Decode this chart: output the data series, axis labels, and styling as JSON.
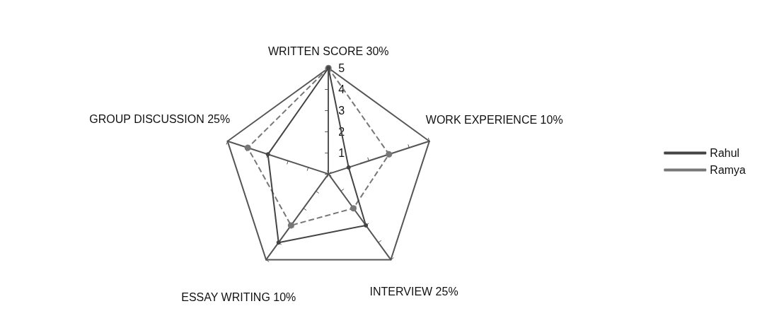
{
  "chart_data": {
    "type": "radar",
    "categories": [
      "WRITTEN SCORE 30%",
      "WORK EXPERIENCE 10%",
      "INTERVIEW 25%",
      "ESSAY WRITING 10%",
      "GROUP DISCUSSION 25%"
    ],
    "series": [
      {
        "name": "Rahul",
        "color": "#444444",
        "values": [
          5,
          1,
          3,
          4,
          3
        ],
        "line_style": "solid"
      },
      {
        "name": "Ramya",
        "color": "#777777",
        "values": [
          5,
          3,
          2,
          3,
          4
        ],
        "line_style": "dashed"
      }
    ],
    "ylim": [
      0,
      5
    ],
    "yticks": [
      1,
      2,
      3,
      4,
      5
    ],
    "legend": "right",
    "marker": "circle"
  }
}
